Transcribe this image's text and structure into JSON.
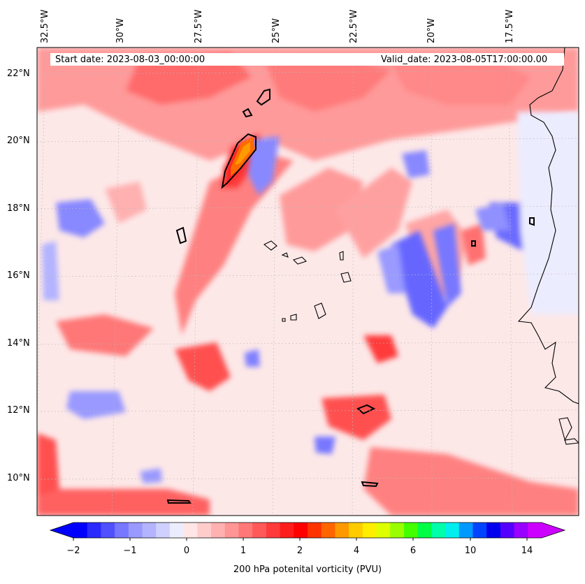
{
  "map": {
    "longitude_labels": [
      "32.5°W",
      "30°W",
      "27.5°W",
      "25°W",
      "22.5°W",
      "20°W",
      "17.5°W"
    ],
    "latitude_labels": [
      "22°N",
      "20°N",
      "18°N",
      "16°N",
      "14°N",
      "12°N",
      "10°N"
    ],
    "start_date": "Start date: 2023-08-03_00:00:00",
    "valid_date": "Valid_date: 2023-08-05T17:00:00.00",
    "land_color": "#000000",
    "background_color": "#fde8e8"
  },
  "colorbar": {
    "title": "200 hPa potenital vorticity (PVU)",
    "ticks": [
      "−2",
      "−1",
      "0",
      "1",
      "2",
      "4",
      "6",
      "10",
      "14"
    ],
    "colors": [
      "#0000ff",
      "#2a2aff",
      "#5050ff",
      "#7777ff",
      "#9999ff",
      "#b3b3ff",
      "#d0d0ff",
      "#ececff",
      "#ffe5e5",
      "#ffcccc",
      "#ffb0b0",
      "#ff9595",
      "#ff7777",
      "#ff5959",
      "#ff3a3a",
      "#ff1c1c",
      "#ff0000",
      "#ff3300",
      "#ff6600",
      "#ff9900",
      "#ffcc00",
      "#ffee00",
      "#ddff00",
      "#99ff00",
      "#44ff00",
      "#00ff44",
      "#00ffaa",
      "#00eeee",
      "#0099ff",
      "#0044ff",
      "#0000ee",
      "#5500ff",
      "#9900ff",
      "#cc00ff"
    ]
  }
}
